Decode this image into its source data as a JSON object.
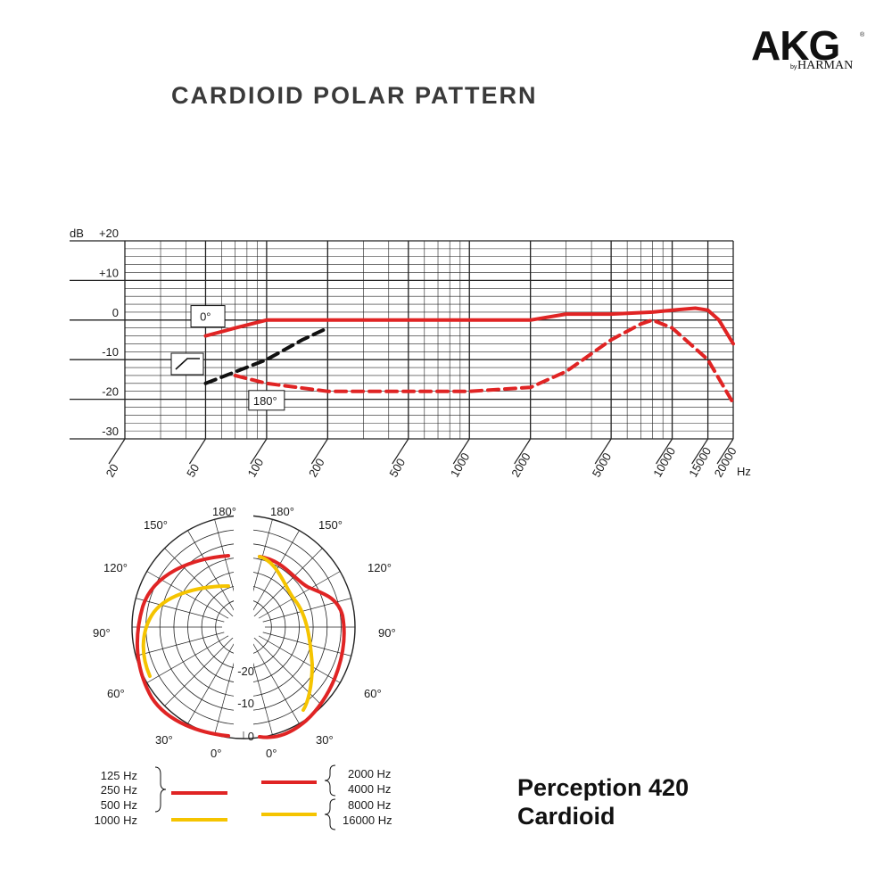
{
  "brand": {
    "logo": "AKG",
    "by": "by",
    "sub": "HARMAN"
  },
  "page_title": "CARDIOID POLAR PATTERN",
  "product": {
    "name": "Perception 420",
    "pattern": "Cardioid"
  },
  "colors": {
    "red": "#e02424",
    "yellow": "#f5c400",
    "black": "#111111",
    "grid": "#222222"
  },
  "chart_data": [
    {
      "type": "line",
      "xscale": "log",
      "xlabel": "Hz",
      "ylabel": "dB",
      "xlim": [
        20,
        20000
      ],
      "ylim": [
        -30,
        20
      ],
      "x_ticks": [
        20,
        50,
        100,
        200,
        500,
        1000,
        2000,
        5000,
        10000,
        15000,
        20000
      ],
      "x_tick_labels": [
        "20",
        "50",
        "100",
        "200",
        "500",
        "1000",
        "2000",
        "5000",
        "10000",
        "15000",
        "20000"
      ],
      "y_ticks": [
        20,
        10,
        0,
        -10,
        -20,
        -30
      ],
      "y_tick_labels": [
        "+20",
        "+10",
        "0",
        "-10",
        "-20",
        "-30"
      ],
      "grid": true,
      "annotations": [
        {
          "text": "0°",
          "x": 45,
          "y": 0.5
        },
        {
          "text": "180°",
          "x": 85,
          "y": -20.5
        }
      ],
      "series": [
        {
          "name": "0°",
          "style": "solid",
          "color": "#e02424",
          "points": [
            [
              50,
              -4
            ],
            [
              70,
              -2
            ],
            [
              100,
              0
            ],
            [
              200,
              0
            ],
            [
              500,
              0
            ],
            [
              1000,
              0
            ],
            [
              2000,
              0
            ],
            [
              3000,
              1.5
            ],
            [
              5000,
              1.5
            ],
            [
              8000,
              2
            ],
            [
              10000,
              2.5
            ],
            [
              13000,
              3
            ],
            [
              15000,
              2.5
            ],
            [
              17000,
              0
            ],
            [
              20000,
              -6
            ]
          ]
        },
        {
          "name": "180°",
          "style": "dashed",
          "color": "#e02424",
          "points": [
            [
              70,
              -14
            ],
            [
              100,
              -16
            ],
            [
              200,
              -18
            ],
            [
              500,
              -18
            ],
            [
              1000,
              -18
            ],
            [
              2000,
              -17
            ],
            [
              3000,
              -13
            ],
            [
              5000,
              -5
            ],
            [
              7000,
              -1
            ],
            [
              8000,
              0
            ],
            [
              10000,
              -2
            ],
            [
              15000,
              -10
            ],
            [
              20000,
              -21
            ]
          ]
        },
        {
          "name": "proximity",
          "style": "dashed",
          "color": "#111111",
          "points": [
            [
              50,
              -16
            ],
            [
              100,
              -10
            ],
            [
              150,
              -5
            ],
            [
              200,
              -2
            ]
          ]
        }
      ]
    },
    {
      "type": "polar",
      "radial_labels": [
        "-20",
        "-10",
        "0"
      ],
      "angle_labels": [
        "180°",
        "150°",
        "120°",
        "90°",
        "60°",
        "30°",
        "0°"
      ],
      "legend": [
        {
          "group": [
            "125 Hz",
            "250 Hz"
          ],
          "color": "#e02424"
        },
        {
          "group": [
            "500 Hz",
            "1000 Hz"
          ],
          "color": "#f5c400"
        },
        {
          "group": [
            "2000 Hz",
            "4000 Hz"
          ],
          "color": "#e02424"
        },
        {
          "group": [
            "8000 Hz",
            "16000 Hz"
          ],
          "color": "#f5c400"
        }
      ]
    }
  ]
}
